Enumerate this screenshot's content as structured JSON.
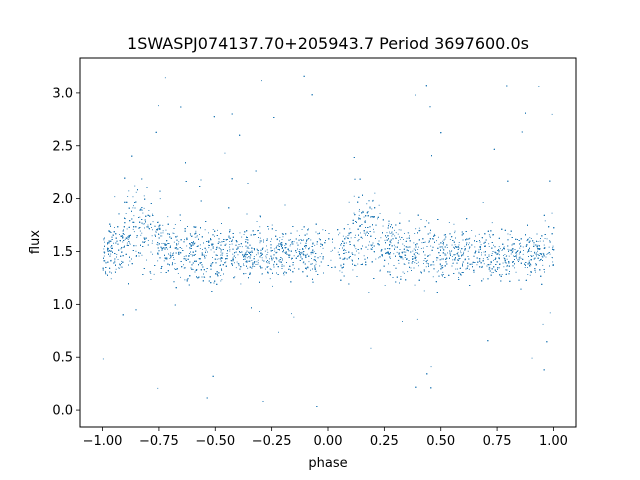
{
  "chart_data": {
    "type": "scatter",
    "title": "1SWASPJ074137.70+205943.7 Period 3697600.0s",
    "xlabel": "phase",
    "ylabel": "flux",
    "xlim": [
      -1.1,
      1.1
    ],
    "ylim": [
      -0.16,
      3.33
    ],
    "xticks": [
      -1.0,
      -0.75,
      -0.5,
      -0.25,
      0.0,
      0.25,
      0.5,
      0.75,
      1.0
    ],
    "xtick_labels": [
      "−1.00",
      "−0.75",
      "−0.50",
      "−0.25",
      "0.00",
      "0.25",
      "0.50",
      "0.75",
      "1.00"
    ],
    "yticks": [
      0.0,
      0.5,
      1.0,
      1.5,
      2.0,
      2.5,
      3.0
    ],
    "ytick_labels": [
      "0.0",
      "0.5",
      "1.0",
      "1.5",
      "2.0",
      "2.5",
      "3.0"
    ],
    "grid": false,
    "marker_color": "#1f77b4",
    "series": [
      {
        "profile_description_phase": [
          -1.0,
          -0.95,
          -0.9,
          -0.85,
          -0.8,
          -0.75,
          -0.7,
          -0.6,
          -0.5,
          -0.4,
          -0.3,
          -0.2,
          -0.1,
          -0.05,
          0.0
        ],
        "profile_center_flux": [
          1.5,
          1.5,
          1.62,
          1.7,
          1.68,
          1.58,
          1.52,
          1.5,
          1.48,
          1.5,
          1.48,
          1.47,
          1.48,
          1.5,
          1.5
        ],
        "profile_spread_flux": [
          0.35,
          0.3,
          0.45,
          0.5,
          0.45,
          0.4,
          0.35,
          0.35,
          0.35,
          0.3,
          0.3,
          0.3,
          0.3,
          0.3,
          0.35
        ]
      }
    ]
  }
}
